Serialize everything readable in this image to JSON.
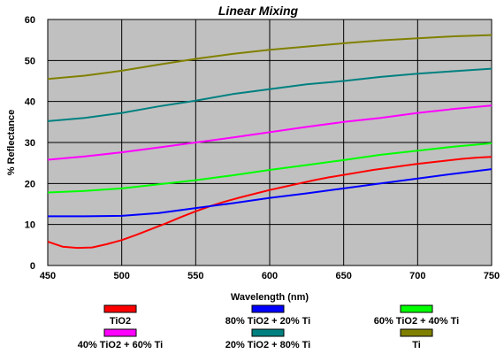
{
  "chart_data": {
    "type": "line",
    "title": "Linear Mixing",
    "xlabel": "Wavelength (nm)",
    "ylabel": "% Reflectance",
    "xlim": [
      450,
      750
    ],
    "ylim": [
      0,
      60
    ],
    "xticks": [
      450,
      500,
      550,
      600,
      650,
      700,
      750
    ],
    "yticks": [
      0,
      10,
      20,
      30,
      40,
      50,
      60
    ],
    "grid": true,
    "plot_background": "#c0c0c0",
    "legend_position": "bottom",
    "series": [
      {
        "name": "TiO2",
        "color": "#ff0000",
        "points": [
          [
            450,
            5.8
          ],
          [
            460,
            4.6
          ],
          [
            470,
            4.3
          ],
          [
            480,
            4.4
          ],
          [
            490,
            5.2
          ],
          [
            500,
            6.2
          ],
          [
            510,
            7.5
          ],
          [
            520,
            8.9
          ],
          [
            530,
            10.3
          ],
          [
            540,
            11.8
          ],
          [
            550,
            13.2
          ],
          [
            560,
            14.5
          ],
          [
            570,
            15.6
          ],
          [
            580,
            16.6
          ],
          [
            590,
            17.5
          ],
          [
            600,
            18.4
          ],
          [
            610,
            19.2
          ],
          [
            620,
            20.0
          ],
          [
            630,
            20.8
          ],
          [
            640,
            21.5
          ],
          [
            650,
            22.1
          ],
          [
            660,
            22.7
          ],
          [
            670,
            23.3
          ],
          [
            680,
            23.8
          ],
          [
            690,
            24.3
          ],
          [
            700,
            24.8
          ],
          [
            710,
            25.2
          ],
          [
            720,
            25.6
          ],
          [
            730,
            26.0
          ],
          [
            740,
            26.3
          ],
          [
            750,
            26.5
          ]
        ]
      },
      {
        "name": "80% TiO2 + 20% Ti",
        "color": "#0000ff",
        "points": [
          [
            450,
            12.0
          ],
          [
            475,
            12.0
          ],
          [
            500,
            12.1
          ],
          [
            525,
            12.8
          ],
          [
            550,
            14.0
          ],
          [
            575,
            15.2
          ],
          [
            600,
            16.5
          ],
          [
            625,
            17.6
          ],
          [
            650,
            18.8
          ],
          [
            675,
            20.0
          ],
          [
            700,
            21.2
          ],
          [
            725,
            22.4
          ],
          [
            750,
            23.5
          ]
        ]
      },
      {
        "name": "60% TiO2 + 40% Ti",
        "color": "#00ff00",
        "points": [
          [
            450,
            17.8
          ],
          [
            475,
            18.2
          ],
          [
            500,
            18.8
          ],
          [
            525,
            19.8
          ],
          [
            550,
            20.8
          ],
          [
            575,
            22.0
          ],
          [
            600,
            23.3
          ],
          [
            625,
            24.5
          ],
          [
            650,
            25.7
          ],
          [
            675,
            27.0
          ],
          [
            700,
            28.0
          ],
          [
            725,
            29.0
          ],
          [
            750,
            29.8
          ]
        ]
      },
      {
        "name": "40% TiO2 + 60% Ti",
        "color": "#ff00ff",
        "points": [
          [
            450,
            25.8
          ],
          [
            475,
            26.6
          ],
          [
            500,
            27.6
          ],
          [
            525,
            28.8
          ],
          [
            550,
            30.0
          ],
          [
            575,
            31.2
          ],
          [
            600,
            32.5
          ],
          [
            625,
            33.8
          ],
          [
            650,
            35.0
          ],
          [
            675,
            36.0
          ],
          [
            700,
            37.2
          ],
          [
            725,
            38.2
          ],
          [
            750,
            39.0
          ]
        ]
      },
      {
        "name": "20% TiO2 + 80% Ti",
        "color": "#008080",
        "points": [
          [
            450,
            35.2
          ],
          [
            475,
            36.0
          ],
          [
            500,
            37.2
          ],
          [
            525,
            38.8
          ],
          [
            550,
            40.2
          ],
          [
            575,
            41.8
          ],
          [
            600,
            43.0
          ],
          [
            625,
            44.2
          ],
          [
            650,
            45.0
          ],
          [
            675,
            46.0
          ],
          [
            700,
            46.8
          ],
          [
            725,
            47.4
          ],
          [
            750,
            48.0
          ]
        ]
      },
      {
        "name": "Ti",
        "color": "#808000",
        "points": [
          [
            450,
            45.5
          ],
          [
            475,
            46.3
          ],
          [
            500,
            47.5
          ],
          [
            525,
            49.0
          ],
          [
            550,
            50.4
          ],
          [
            575,
            51.6
          ],
          [
            600,
            52.6
          ],
          [
            625,
            53.4
          ],
          [
            650,
            54.2
          ],
          [
            675,
            54.9
          ],
          [
            700,
            55.4
          ],
          [
            725,
            55.9
          ],
          [
            750,
            56.2
          ]
        ]
      }
    ]
  }
}
